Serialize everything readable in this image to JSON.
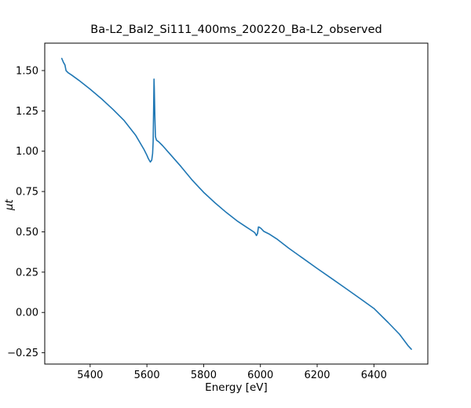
{
  "chart_data": {
    "type": "line",
    "title": "Ba-L2_BaI2_Si111_400ms_200220_Ba-L2_observed",
    "xlabel": "Energy [eV]",
    "ylabel": "μt",
    "xlim": [
      5240,
      6590
    ],
    "ylim": [
      -0.32,
      1.67
    ],
    "xticks": [
      5400,
      5600,
      5800,
      6000,
      6200,
      6400
    ],
    "xtick_labels": [
      "5400",
      "5600",
      "5800",
      "6000",
      "6200",
      "6400"
    ],
    "yticks": [
      -0.25,
      0.0,
      0.25,
      0.5,
      0.75,
      1.0,
      1.25,
      1.5
    ],
    "ytick_labels": [
      "−0.25",
      "0.00",
      "0.25",
      "0.50",
      "0.75",
      "1.00",
      "1.25",
      "1.50"
    ],
    "grid": false,
    "legend": "none",
    "line_color": "#1f77b4",
    "background_color": "#ffffff",
    "series": [
      {
        "name": "observed",
        "x": [
          5300,
          5306,
          5311,
          5315,
          5322,
          5335,
          5360,
          5400,
          5440,
          5480,
          5520,
          5560,
          5590,
          5600,
          5605,
          5612,
          5617,
          5620,
          5622,
          5624,
          5625,
          5626,
          5628,
          5630,
          5634,
          5642,
          5655,
          5680,
          5720,
          5760,
          5800,
          5840,
          5880,
          5920,
          5950,
          5970,
          5980,
          5986,
          5990,
          5993,
          5997,
          6003,
          6012,
          6030,
          6060,
          6100,
          6150,
          6200,
          6250,
          6300,
          6350,
          6400,
          6450,
          6490,
          6520,
          6532
        ],
        "y": [
          1.575,
          1.55,
          1.535,
          1.5,
          1.487,
          1.472,
          1.44,
          1.385,
          1.325,
          1.26,
          1.19,
          1.1,
          1.01,
          0.975,
          0.955,
          0.933,
          0.945,
          0.985,
          1.06,
          1.3,
          1.447,
          1.4,
          1.21,
          1.09,
          1.068,
          1.058,
          1.035,
          0.985,
          0.905,
          0.82,
          0.745,
          0.68,
          0.62,
          0.565,
          0.53,
          0.507,
          0.495,
          0.477,
          0.49,
          0.53,
          0.528,
          0.52,
          0.503,
          0.487,
          0.453,
          0.398,
          0.336,
          0.273,
          0.212,
          0.15,
          0.088,
          0.025,
          -0.062,
          -0.135,
          -0.205,
          -0.228
        ]
      }
    ],
    "annotations": {
      "edge_spike_energy": 5625,
      "edge_spike_mu_t": 1.447,
      "secondary_bump_energy": 5993,
      "secondary_bump_mu_t": 0.53
    }
  }
}
